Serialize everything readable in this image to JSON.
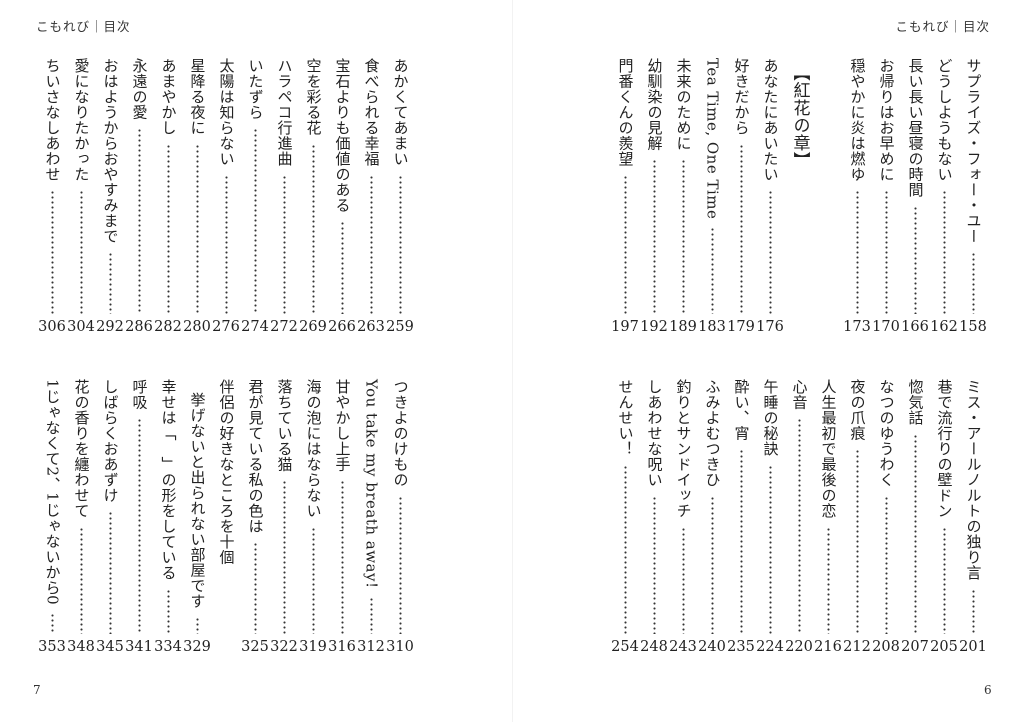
{
  "left_page": {
    "running_head": "こもれび｜目次",
    "folio": "7",
    "top_block": [
      {
        "title": [
          "あかくてあまい"
        ],
        "page": "259"
      },
      {
        "title": [
          "食べられる幸福"
        ],
        "page": "263"
      },
      {
        "title": [
          "宝石よりも価値のある"
        ],
        "page": "266"
      },
      {
        "title": [
          "空を彩る花"
        ],
        "page": "269"
      },
      {
        "title": [
          "ハラペコ行進曲"
        ],
        "page": "272"
      },
      {
        "title": [
          "いたずら"
        ],
        "page": "274"
      },
      {
        "title": [
          "太陽は知らない"
        ],
        "page": "276"
      },
      {
        "title": [
          "星降る夜に"
        ],
        "page": "280"
      },
      {
        "title": [
          "あまやかし"
        ],
        "page": "282"
      },
      {
        "title": [
          "永遠の愛"
        ],
        "page": "286"
      },
      {
        "title": [
          "おはようからおやすみまで"
        ],
        "page": "292"
      },
      {
        "title": [
          "愛になりたかった"
        ],
        "page": "304"
      },
      {
        "title": [
          "ちいさなしあわせ"
        ],
        "page": "306"
      }
    ],
    "bottom_block": [
      {
        "title": [
          "つきよのけもの"
        ],
        "page": "310"
      },
      {
        "title": [
          "You take my breath away!"
        ],
        "page": "312"
      },
      {
        "title": [
          "甘やかし上手"
        ],
        "page": "316"
      },
      {
        "title": [
          "海の泡にはならない"
        ],
        "page": "319"
      },
      {
        "title": [
          "落ちている猫"
        ],
        "page": "322"
      },
      {
        "title": [
          "君が見ている私の色は"
        ],
        "page": "325"
      },
      {
        "title": [
          "伴侶の好きなところを十個",
          "挙げないと出られない部屋です"
        ],
        "page": "329"
      },
      {
        "title": [
          "幸せは「　」の形をしている"
        ],
        "page": "334"
      },
      {
        "title": [
          "呼吸"
        ],
        "page": "341"
      },
      {
        "title": [
          "しばらくおあずけ"
        ],
        "page": "345"
      },
      {
        "title": [
          "花の香りを纏わせて"
        ],
        "page": "348"
      },
      {
        "title": [
          "1じゃなくて2、1じゃないから0"
        ],
        "page": "353"
      }
    ]
  },
  "right_page": {
    "running_head": "こもれび｜目次",
    "folio": "6",
    "top_block": [
      {
        "title": [
          "サプライズ・フォー・ユー"
        ],
        "page": "158"
      },
      {
        "title": [
          "どうしようもない"
        ],
        "page": "162"
      },
      {
        "title": [
          "長い長い昼寝の時間"
        ],
        "page": "166"
      },
      {
        "title": [
          "お帰りはお早めに"
        ],
        "page": "170"
      },
      {
        "title": [
          "穏やかに炎は燃ゆ"
        ],
        "page": "173"
      },
      {
        "chapter": "【紅花の章】"
      },
      {
        "title": [
          "あなたにあいたい"
        ],
        "page": "176"
      },
      {
        "title": [
          "好きだから"
        ],
        "page": "179"
      },
      {
        "title": [
          "Tea Time, One Time"
        ],
        "page": "183"
      },
      {
        "title": [
          "未来のために"
        ],
        "page": "189"
      },
      {
        "title": [
          "幼馴染の見解"
        ],
        "page": "192"
      },
      {
        "title": [
          "門番くんの羨望"
        ],
        "page": "197"
      }
    ],
    "bottom_block": [
      {
        "title": [
          "ミス・アールノルトの独り言"
        ],
        "page": "201"
      },
      {
        "title": [
          "巷で流行りの壁ドン"
        ],
        "page": "205"
      },
      {
        "title": [
          "惚気話"
        ],
        "page": "207"
      },
      {
        "title": [
          "なつのゆうわく"
        ],
        "page": "208"
      },
      {
        "title": [
          "夜の爪痕"
        ],
        "page": "212"
      },
      {
        "title": [
          "人生最初で最後の恋"
        ],
        "page": "216"
      },
      {
        "title": [
          "心音"
        ],
        "page": "220"
      },
      {
        "title": [
          "午睡の秘訣"
        ],
        "page": "224"
      },
      {
        "title": [
          "酔い、宵"
        ],
        "page": "235"
      },
      {
        "title": [
          "ふみよむつきひ"
        ],
        "page": "240"
      },
      {
        "title": [
          "釣りとサンドイッチ"
        ],
        "page": "243"
      },
      {
        "title": [
          "しあわせな呪い"
        ],
        "page": "248"
      },
      {
        "title": [
          "せんせい！"
        ],
        "page": "254"
      }
    ]
  }
}
